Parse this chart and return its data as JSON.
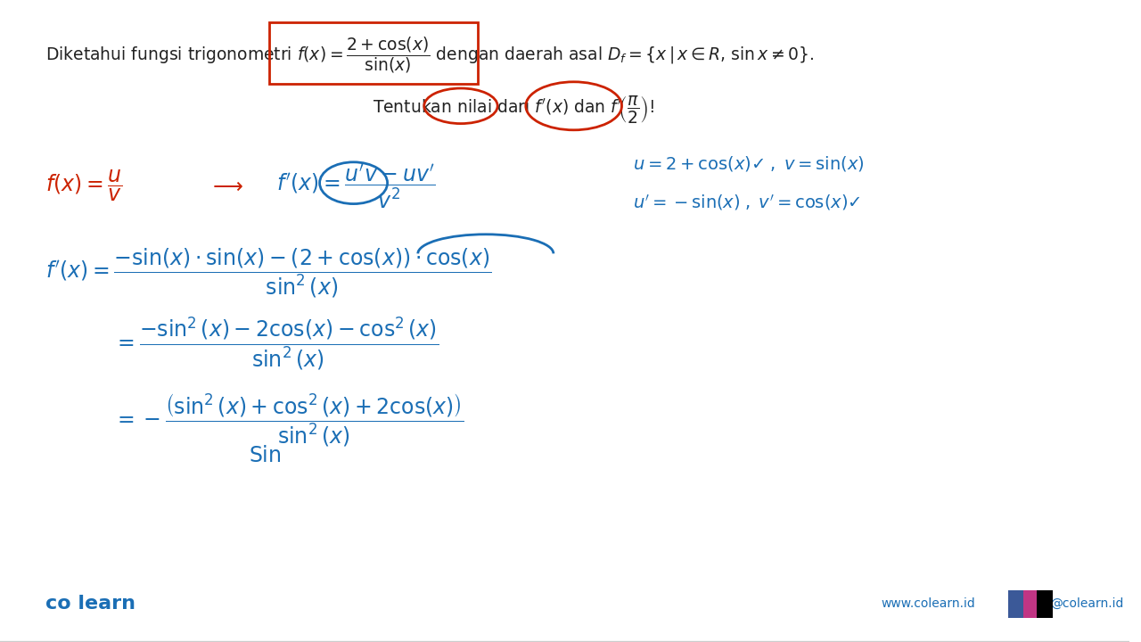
{
  "bg_color": "#f5f5f5",
  "title_text": "Diketahui fungsi trigonometri $f(x) = \\dfrac{2 + \\cos(x)}{\\sin(x)}$ dengan daerah asal $D_f = \\{x\\,|\\,x \\in R,\\, \\sin x \\neq 0\\}$.",
  "subtitle_text": "Tentukan nilai dari $f^{\\prime}(x)$ dan $f^{\\prime}\\!\\left(\\dfrac{\\pi}{2}\\right)$!",
  "line1": "$f(x) = \\dfrac{u}{v} \\;\\longrightarrow\\; f^{\\prime}(x) = \\dfrac{u^{\\prime}v - uv^{\\prime}}{v^2}$",
  "line1_right": "$u = 2 + \\cos(x)\\checkmark \\;,\\; v = \\sin(x)$",
  "line2_right": "$u^{\\prime} = -\\sin(x) \\;,\\; v^{\\prime} = \\cos(x)\\checkmark$",
  "line3": "$f^{\\prime}(x) = \\dfrac{-\\sin(x)\\cdot\\sin(x) - (2 + \\cos(x))\\cdot\\cos(x)}{\\sin^2(x)}$",
  "line4": "$= \\dfrac{-\\sin^2(x) - 2\\cos(x) - \\cos^2(x)}{\\sin^2(x)}$",
  "line5": "$= -\\dfrac{\\left(\\sin^2(x) + \\cos^2(x) + 2\\cos(x)\\right)}{\\sin^2(x)}$",
  "colearn_blue": "#1a6eb5",
  "red_color": "#cc2200",
  "dark_blue": "#1a3a7a"
}
